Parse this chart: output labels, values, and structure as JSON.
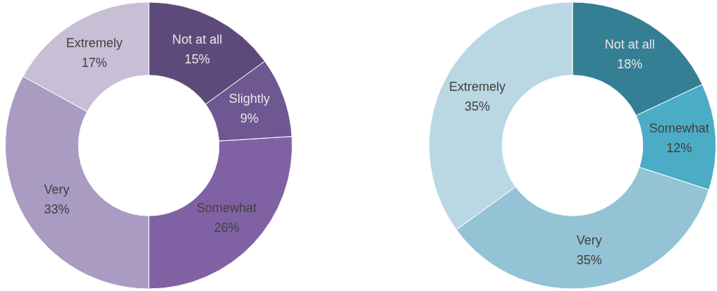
{
  "chart_data": [
    {
      "type": "donut",
      "categories": [
        "Not at all",
        "Slightly",
        "Somewhat",
        "Very",
        "Extremely"
      ],
      "values": [
        15,
        9,
        26,
        33,
        17
      ],
      "value_labels": [
        "15%",
        "9%",
        "26%",
        "33%",
        "17%"
      ],
      "colors": [
        "#5e4a7a",
        "#6f5791",
        "#8062a4",
        "#a99bc1",
        "#c8bfd6"
      ]
    },
    {
      "type": "donut",
      "categories": [
        "Not at all",
        "Somewhat",
        "Very",
        "Extremely"
      ],
      "values": [
        18,
        12,
        35,
        35
      ],
      "value_labels": [
        "18%",
        "12%",
        "35%",
        "35%"
      ],
      "colors": [
        "#357f94",
        "#4bacc6",
        "#93c3d4",
        "#bad8e3"
      ]
    }
  ]
}
